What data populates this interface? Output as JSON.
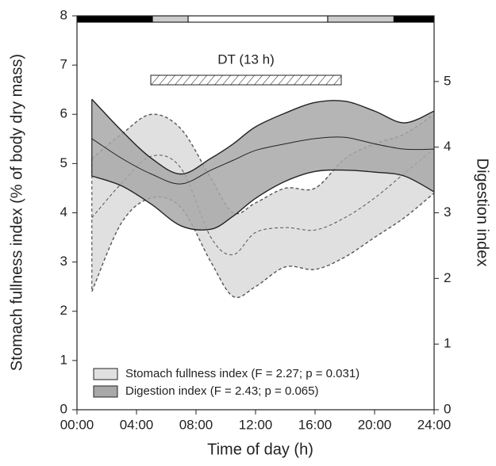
{
  "chart_data": {
    "type": "band",
    "xlabel": "Time of day (h)",
    "ylabel": "Stomach fullness index (% of body dry mass)",
    "y2label": "Digestion index",
    "x": [
      1,
      3,
      5,
      7,
      9,
      10.5,
      12,
      14,
      16,
      18,
      20,
      22,
      24
    ],
    "series": [
      {
        "name": "Stomach fullness index (F = 2.27; p = 0.031)",
        "color": "#e0e0e0",
        "line_color": "#555555",
        "dashed": true,
        "axis": "y",
        "upper": [
          5.1,
          5.6,
          6.0,
          5.7,
          4.7,
          4.0,
          4.2,
          4.5,
          4.5,
          5.1,
          5.4,
          5.6,
          6.0
        ],
        "values": [
          3.9,
          4.6,
          5.15,
          4.9,
          3.5,
          3.15,
          3.6,
          3.7,
          3.65,
          3.9,
          4.3,
          4.8,
          5.3
        ],
        "lower": [
          2.4,
          3.8,
          4.3,
          4.1,
          3.0,
          2.3,
          2.5,
          2.9,
          2.85,
          3.1,
          3.5,
          3.9,
          4.4
        ]
      },
      {
        "name": "Digestion index (F = 2.43; p = 0.065)",
        "color": "#a8a8a8",
        "line_color": "#222222",
        "dashed": false,
        "axis": "y2",
        "upper": [
          4.73,
          4.25,
          3.83,
          3.59,
          3.83,
          4.05,
          4.31,
          4.52,
          4.68,
          4.7,
          4.55,
          4.37,
          4.55
        ],
        "values": [
          4.13,
          3.83,
          3.59,
          3.44,
          3.65,
          3.8,
          3.95,
          4.05,
          4.13,
          4.15,
          4.05,
          3.97,
          3.97
        ],
        "lower": [
          3.56,
          3.41,
          3.13,
          2.8,
          2.75,
          2.95,
          3.22,
          3.48,
          3.63,
          3.65,
          3.62,
          3.56,
          3.32
        ]
      }
    ],
    "xlim": [
      0,
      24
    ],
    "xticks": [
      {
        "value": 0,
        "label": "00:00"
      },
      {
        "value": 4,
        "label": "04:00"
      },
      {
        "value": 8,
        "label": "08:00"
      },
      {
        "value": 12,
        "label": "12:00"
      },
      {
        "value": 16,
        "label": "16:00"
      },
      {
        "value": 20,
        "label": "20:00"
      },
      {
        "value": 24,
        "label": "24:00"
      }
    ],
    "ylim": [
      0,
      8
    ],
    "yticks": [
      0,
      1,
      2,
      3,
      4,
      5,
      6,
      7,
      8
    ],
    "y2lim": [
      0,
      6
    ],
    "y2ticks": [
      0,
      1,
      2,
      3,
      4,
      5
    ],
    "light_bar": [
      {
        "start": 0,
        "end": 5.07,
        "color": "#000000"
      },
      {
        "start": 5.07,
        "end": 7.47,
        "color": "#cccccc"
      },
      {
        "start": 7.47,
        "end": 16.85,
        "color": "#ffffff"
      },
      {
        "start": 16.85,
        "end": 21.3,
        "color": "#cccccc"
      },
      {
        "start": 21.3,
        "end": 24,
        "color": "#000000"
      }
    ],
    "annotation": {
      "text": "DT (13 h)",
      "start": 4.96,
      "end": 17.76
    },
    "legend": "lower left"
  }
}
